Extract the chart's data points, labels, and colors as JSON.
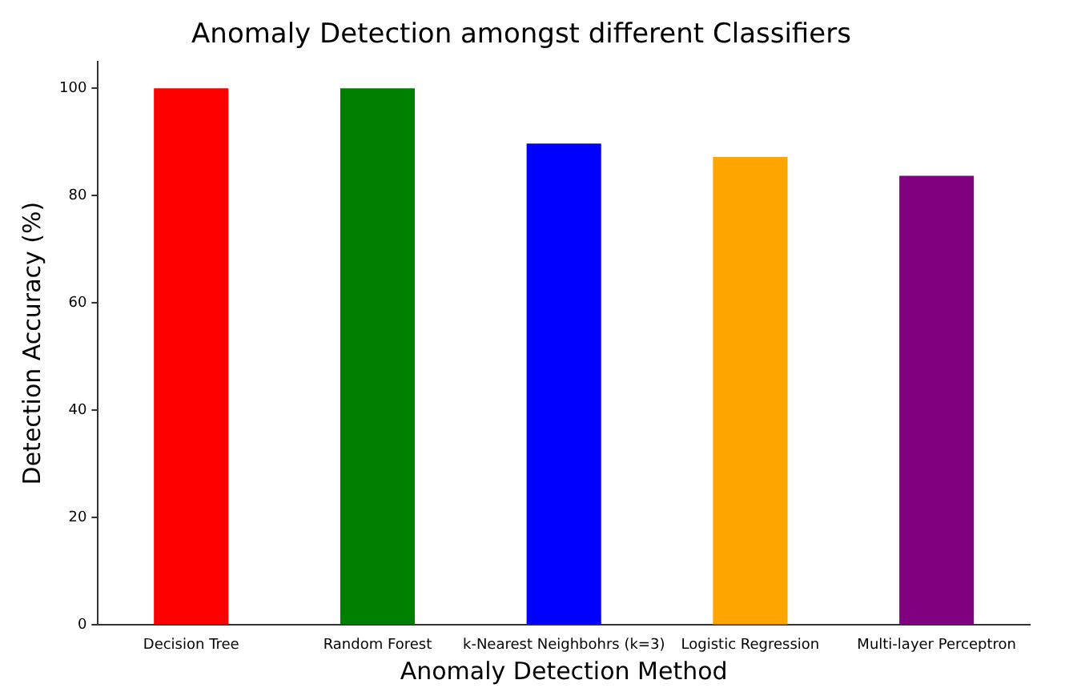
{
  "chart_data": {
    "type": "bar",
    "title": "Anomaly Detection amongst different Classifiers",
    "xlabel": "Anomaly Detection Method",
    "ylabel": "Detection Accuracy (%)",
    "categories": [
      "Decision Tree",
      "Random Forest",
      "k-Nearest Neighbohrs (k=3)",
      "Logistic Regression",
      "Multi-layer Perceptron"
    ],
    "values": [
      100,
      100,
      89.7,
      87.2,
      83.7
    ],
    "colors": [
      "#ff0000",
      "#008000",
      "#0000ff",
      "#ffa500",
      "#800080"
    ],
    "ylim": [
      0,
      105
    ],
    "yticks": [
      0,
      20,
      40,
      60,
      80,
      100
    ],
    "grid": false,
    "legend": false
  }
}
